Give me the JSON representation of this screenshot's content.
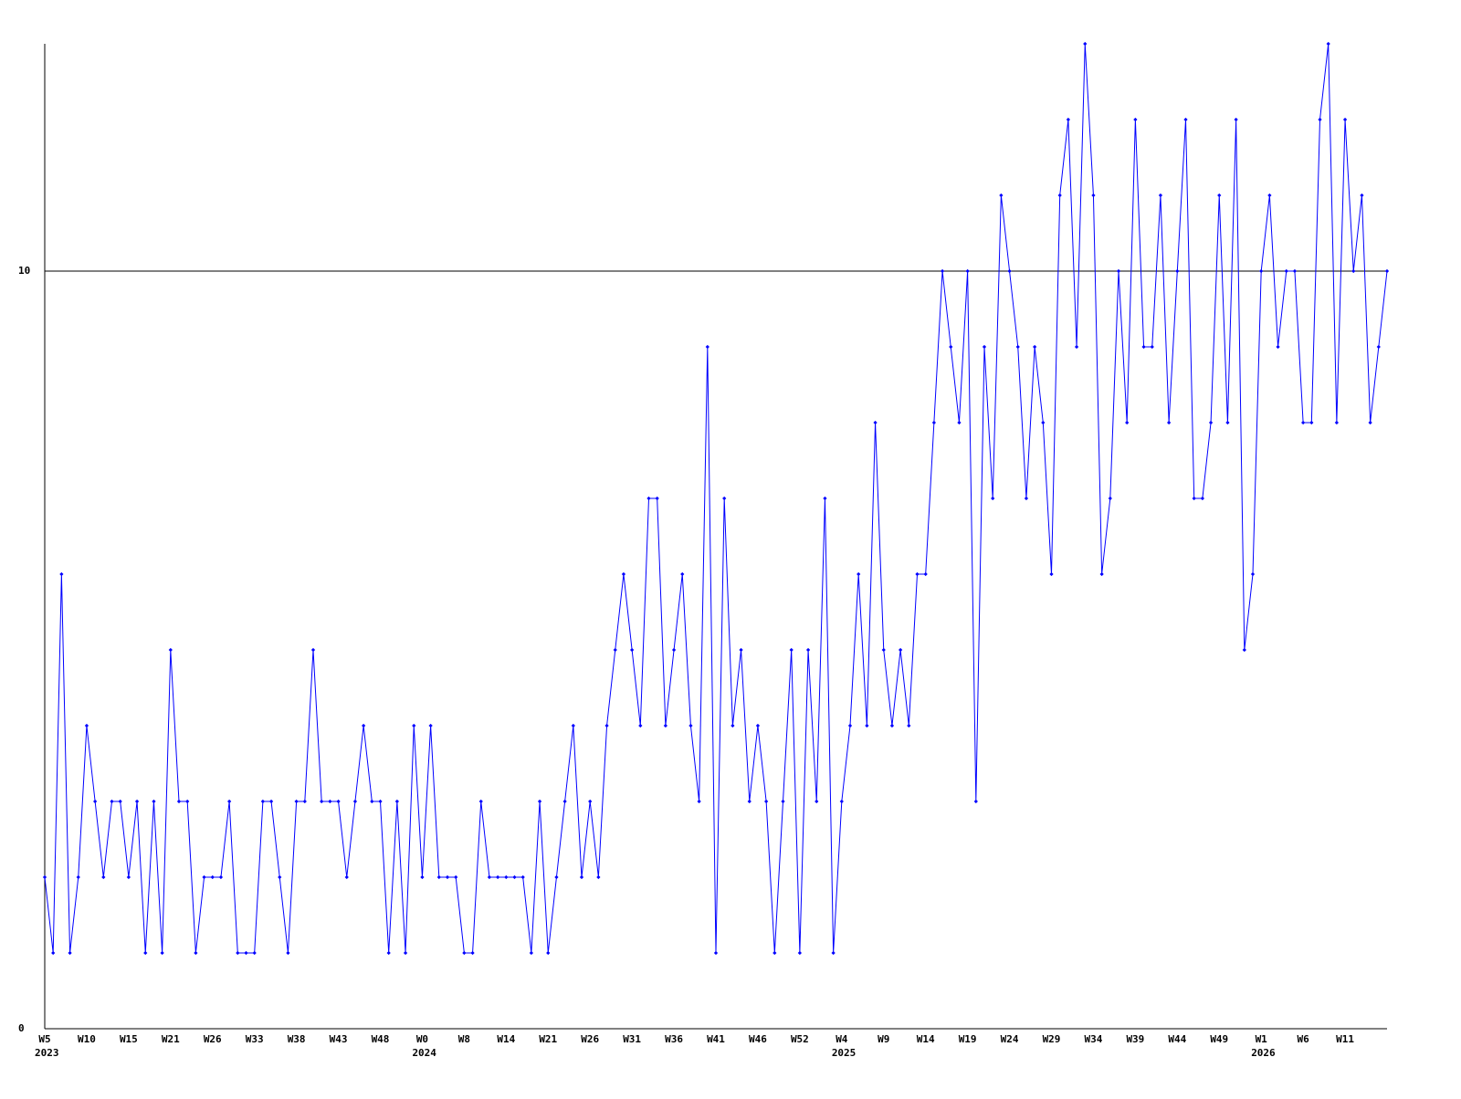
{
  "chart_data": {
    "type": "line",
    "color": "#0000ff",
    "categories": [
      "W5",
      null,
      null,
      null,
      null,
      "W10",
      null,
      null,
      null,
      null,
      "W15",
      null,
      null,
      null,
      null,
      "W21",
      null,
      null,
      null,
      null,
      "W26",
      null,
      null,
      null,
      null,
      "W33",
      null,
      null,
      null,
      null,
      "W38",
      null,
      null,
      null,
      null,
      "W43",
      null,
      null,
      null,
      null,
      "W48",
      null,
      null,
      null,
      null,
      "W0",
      null,
      null,
      null,
      null,
      "W8",
      null,
      null,
      null,
      null,
      "W14",
      null,
      null,
      null,
      null,
      "W21",
      null,
      null,
      null,
      null,
      "W26",
      null,
      null,
      null,
      null,
      "W31",
      null,
      null,
      null,
      null,
      "W36",
      null,
      null,
      null,
      null,
      "W41",
      null,
      null,
      null,
      null,
      "W46",
      null,
      null,
      null,
      null,
      "W52",
      null,
      null,
      null,
      null,
      "W4",
      null,
      null,
      null,
      null,
      "W9",
      null,
      null,
      null,
      null,
      "W14",
      null,
      null,
      null,
      null,
      "W19",
      null,
      null,
      null,
      null,
      "W24",
      null,
      null,
      null,
      null,
      "W29",
      null,
      null,
      null,
      null,
      "W34",
      null,
      null,
      null,
      null,
      "W39",
      null,
      null,
      null,
      null,
      "W44",
      null,
      null,
      null,
      null,
      "W49",
      null,
      null,
      null,
      null,
      "W1",
      null,
      null,
      null,
      null,
      "W6",
      null,
      null,
      null,
      null,
      "W11",
      null,
      null,
      null,
      null,
      null
    ],
    "category_years": [
      "2023",
      null,
      null,
      null,
      null,
      null,
      null,
      null,
      null,
      null,
      null,
      null,
      null,
      null,
      null,
      null,
      null,
      null,
      null,
      null,
      null,
      null,
      null,
      null,
      null,
      null,
      null,
      null,
      null,
      null,
      null,
      null,
      null,
      null,
      null,
      null,
      null,
      null,
      null,
      null,
      null,
      null,
      null,
      null,
      null,
      "2024",
      null,
      null,
      null,
      null,
      null,
      null,
      null,
      null,
      null,
      null,
      null,
      null,
      null,
      null,
      null,
      null,
      null,
      null,
      null,
      null,
      null,
      null,
      null,
      null,
      null,
      null,
      null,
      null,
      null,
      null,
      null,
      null,
      null,
      null,
      null,
      null,
      null,
      null,
      null,
      null,
      null,
      null,
      null,
      null,
      null,
      null,
      null,
      null,
      null,
      "2025",
      null,
      null,
      null,
      null,
      null,
      null,
      null,
      null,
      null,
      null,
      null,
      null,
      null,
      null,
      null,
      null,
      null,
      null,
      null,
      null,
      null,
      null,
      null,
      null,
      null,
      null,
      null,
      null,
      null,
      null,
      null,
      null,
      null,
      null,
      null,
      null,
      null,
      null,
      null,
      null,
      null,
      null,
      null,
      null,
      null,
      null,
      null,
      null,
      null,
      "2026",
      null,
      null,
      null,
      null,
      null,
      null,
      null,
      null,
      null,
      null,
      null,
      null,
      null,
      null,
      null
    ],
    "values": [
      2,
      1,
      6,
      1,
      2,
      4,
      3,
      2,
      3,
      3,
      2,
      3,
      1,
      3,
      1,
      5,
      3,
      3,
      1,
      2,
      2,
      2,
      3,
      1,
      1,
      1,
      3,
      3,
      2,
      1,
      3,
      3,
      5,
      3,
      3,
      3,
      2,
      3,
      4,
      3,
      3,
      1,
      3,
      1,
      4,
      2,
      4,
      2,
      2,
      2,
      1,
      1,
      3,
      2,
      2,
      2,
      2,
      2,
      1,
      3,
      1,
      2,
      3,
      4,
      2,
      3,
      2,
      4,
      5,
      6,
      5,
      4,
      7,
      7,
      4,
      5,
      6,
      4,
      3,
      9,
      1,
      7,
      4,
      5,
      3,
      4,
      3,
      1,
      3,
      5,
      1,
      5,
      3,
      7,
      1,
      3,
      4,
      6,
      4,
      8,
      5,
      4,
      5,
      4,
      6,
      6,
      8,
      10,
      9,
      8,
      10,
      3,
      9,
      7,
      11,
      10,
      9,
      7,
      9,
      8,
      6,
      11,
      12,
      9,
      13,
      11,
      6,
      7,
      10,
      8,
      12,
      9,
      9,
      11,
      8,
      10,
      12,
      7,
      7,
      8,
      11,
      8,
      12,
      5,
      6,
      10,
      11,
      9,
      10,
      10,
      8,
      8,
      12,
      13,
      8,
      12,
      10,
      11,
      8,
      9,
      10
    ],
    "ylim": [
      0,
      13
    ],
    "yticks": [
      0,
      10
    ],
    "grid": true
  }
}
